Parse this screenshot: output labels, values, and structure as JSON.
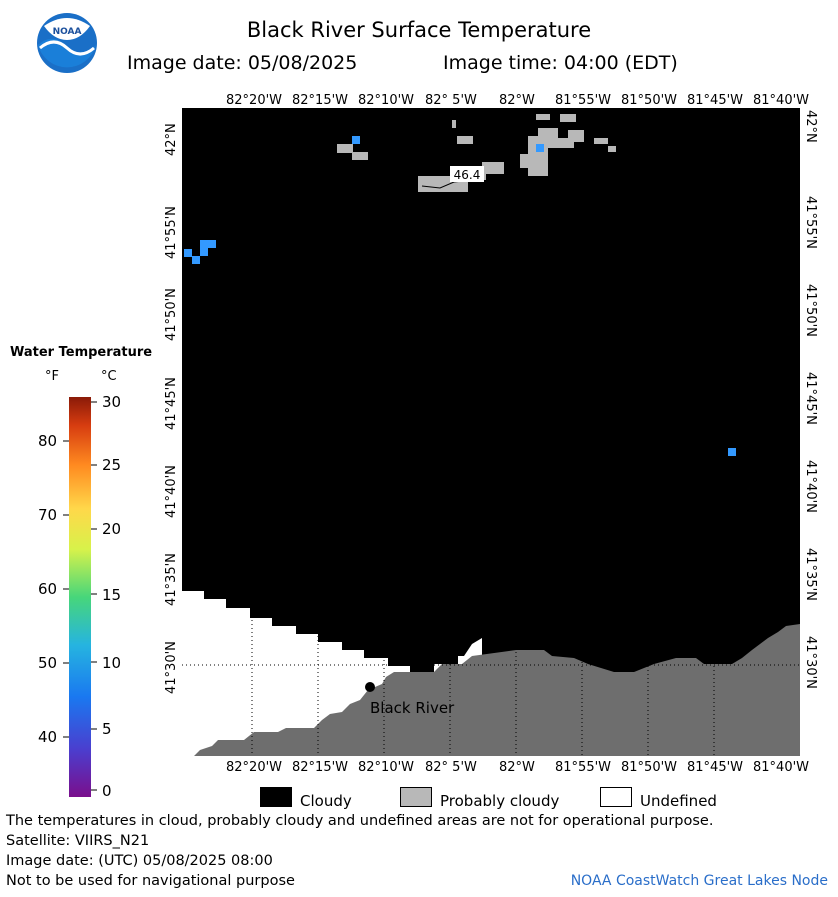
{
  "header": {
    "title": "Black River Surface Temperature",
    "image_date": "Image date: 05/08/2025",
    "image_time": "Image time: 04:00 (EDT)"
  },
  "logo": {
    "text": "NOAA"
  },
  "map": {
    "lon_ticks": [
      "82°20'W",
      "82°15'W",
      "82°10'W",
      "82° 5'W",
      "82°W",
      "81°55'W",
      "81°50'W",
      "81°45'W",
      "81°40'W"
    ],
    "lat_ticks": [
      "42°N",
      "41°55'N",
      "41°50'N",
      "41°45'N",
      "41°40'N",
      "41°35'N",
      "41°30'N"
    ],
    "contour_label": "46.4",
    "place_label": "Black River"
  },
  "legend": {
    "title": "Water Temperature",
    "unit_f": "°F",
    "unit_c": "°C",
    "f_ticks": [
      "80",
      "70",
      "60",
      "50",
      "40"
    ],
    "c_ticks": [
      "30",
      "25",
      "20",
      "15",
      "10",
      "5",
      "0"
    ]
  },
  "key": {
    "cloudy": "Cloudy",
    "probably_cloudy": "Probably cloudy",
    "undefined": "Undefined"
  },
  "footer": {
    "disclaimer": "The temperatures in cloud, probably cloudy and undefined areas are not for operational purpose.",
    "satellite": "Satellite: VIIRS_N21",
    "utc_date": "Image date: (UTC) 05/08/2025  08:00",
    "nav_warning": "Not to be used for navigational purpose",
    "credit": "NOAA CoastWatch Great Lakes Node"
  },
  "colors": {
    "cloudy": "#000000",
    "probably_cloudy": "#b8b8b8",
    "land": "#6e6e6e",
    "undefined": "#ffffff",
    "pixel_water": "#3399ff",
    "credit": "#2a6ec9"
  },
  "icons": [
    "noaa-logo-icon"
  ]
}
